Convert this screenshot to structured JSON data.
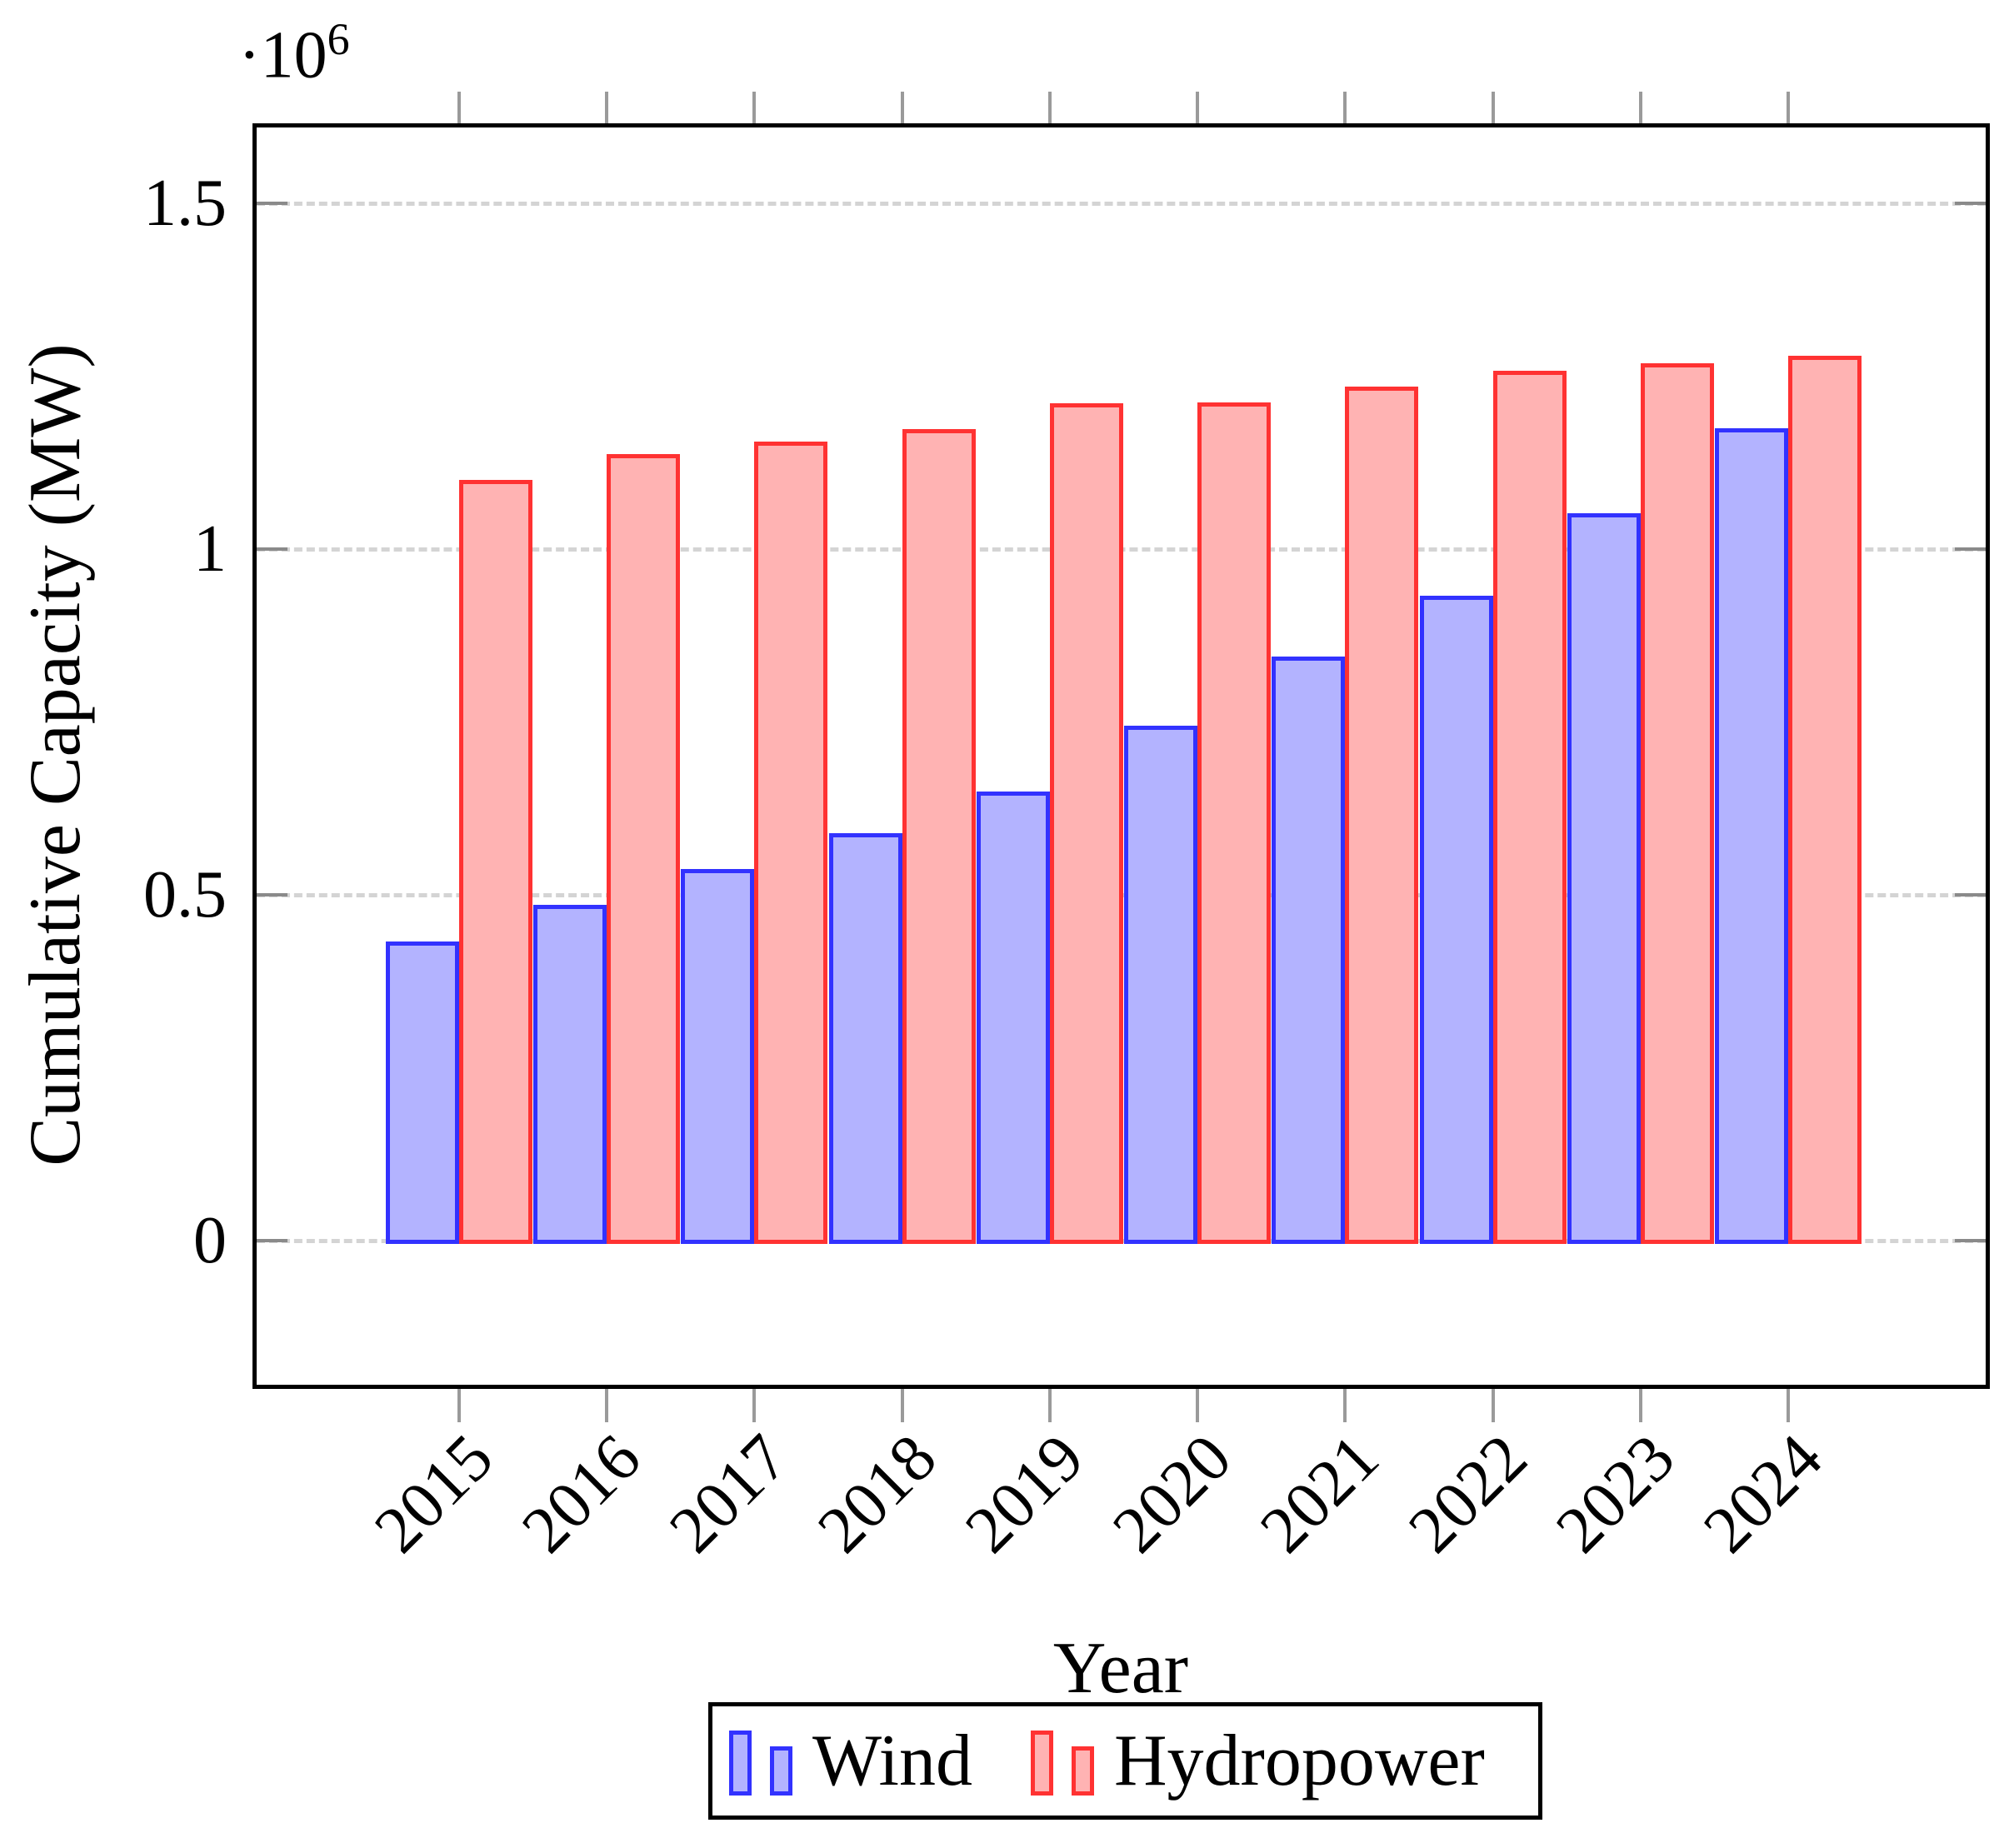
{
  "figure": {
    "background": "#ffffff"
  },
  "chart_data": {
    "type": "bar",
    "title": "",
    "xlabel": "Year",
    "ylabel": "Cumulative Capacity (MW)",
    "y_scale_label": {
      "base": "·10",
      "exponent": "6"
    },
    "categories": [
      "2015",
      "2016",
      "2017",
      "2018",
      "2019",
      "2020",
      "2021",
      "2022",
      "2023",
      "2024"
    ],
    "series": [
      {
        "name": "Wind",
        "fill": "#b3b3ff",
        "stroke": "#3232ff",
        "values": [
          432000,
          485000,
          537000,
          589000,
          650000,
          744000,
          845000,
          932000,
          1052000,
          1175000
        ]
      },
      {
        "name": "Hydropower",
        "fill": "#ffb3b3",
        "stroke": "#ff3232",
        "values": [
          1100000,
          1137000,
          1155000,
          1173000,
          1211000,
          1212000,
          1235000,
          1258000,
          1269000,
          1280000
        ]
      }
    ],
    "y_axis": {
      "ticks": [
        {
          "value": 0,
          "label": "0"
        },
        {
          "value": 500000,
          "label": "0.5"
        },
        {
          "value": 1000000,
          "label": "1"
        },
        {
          "value": 1500000,
          "label": "1.5"
        }
      ],
      "ylim": [
        -215000,
        1617000
      ],
      "grid": "dashed"
    },
    "legend": {
      "position": "below",
      "entries": [
        "Wind",
        "Hydropower"
      ]
    },
    "colors": {
      "grid": "#d4d4d4",
      "tick": "#999999",
      "axis": "#000000"
    }
  }
}
